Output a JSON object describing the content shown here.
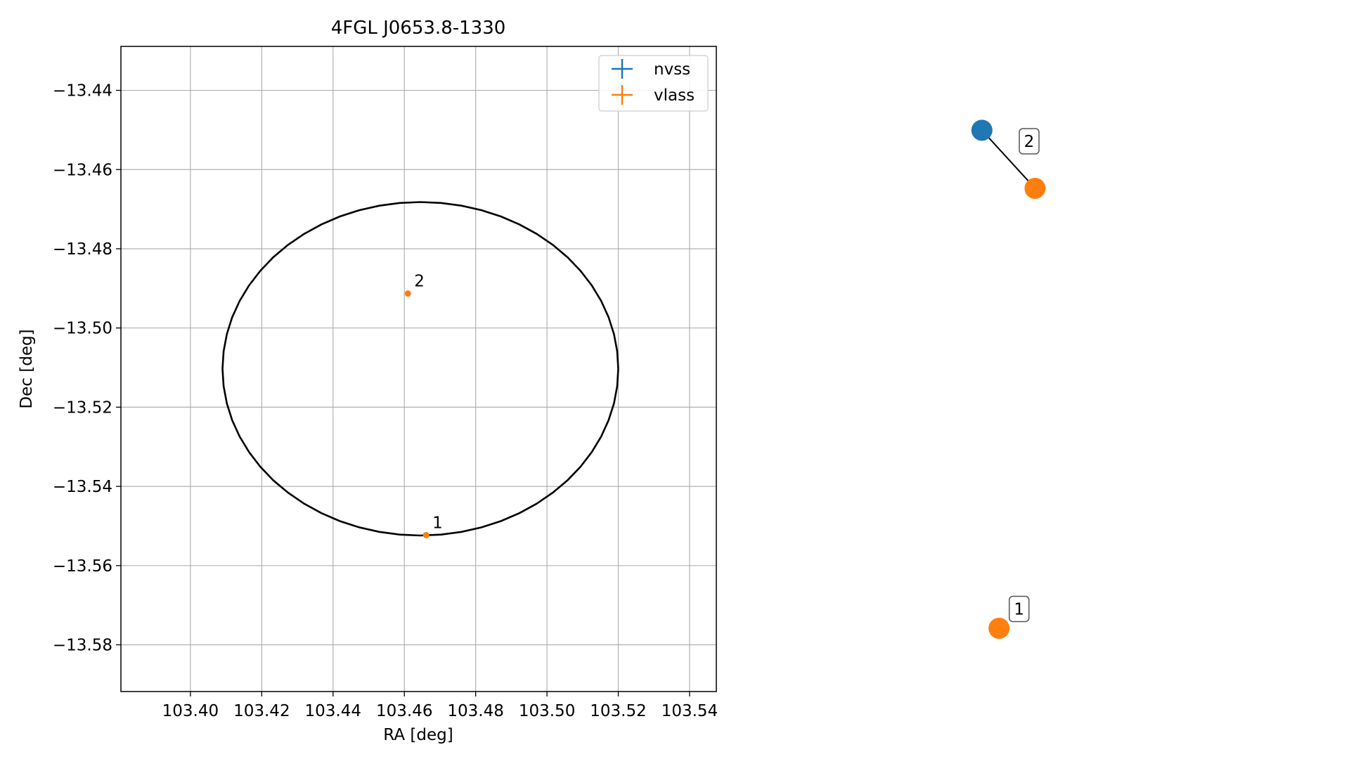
{
  "chart_data": [
    {
      "type": "scatter",
      "title": "4FGL J0653.8-1330",
      "xlabel": "RA [deg]",
      "ylabel": "Dec [deg]",
      "xlim": [
        103.3805,
        103.5475
      ],
      "ylim": [
        -13.5918,
        -13.4289
      ],
      "xticks": [
        103.4,
        103.42,
        103.44,
        103.46,
        103.48,
        103.5,
        103.52,
        103.54
      ],
      "xtick_labels": [
        "103.40",
        "103.42",
        "103.44",
        "103.46",
        "103.48",
        "103.50",
        "103.52",
        "103.54"
      ],
      "yticks": [
        -13.44,
        -13.46,
        -13.48,
        -13.5,
        -13.52,
        -13.54,
        -13.56,
        -13.58
      ],
      "ytick_labels": [
        "−13.44",
        "−13.46",
        "−13.48",
        "−13.50",
        "−13.52",
        "−13.54",
        "−13.56",
        "−13.58"
      ],
      "grid": true,
      "legend_position": "top-right",
      "legend": [
        {
          "label": "nvss",
          "color": "#1f77b4"
        },
        {
          "label": "vlass",
          "color": "#ff7f0e"
        }
      ],
      "ellipse": {
        "center": [
          103.4645,
          -13.5103
        ],
        "semi_axis_ra": 0.0555,
        "semi_axis_dec": 0.0421,
        "color": "#000000"
      },
      "series": [
        {
          "name": "vlass",
          "color": "#ff7f0e",
          "points": [
            {
              "label": "2",
              "x": 103.461,
              "y": -13.4913
            },
            {
              "label": "1",
              "x": 103.4661,
              "y": -13.5523
            }
          ]
        }
      ]
    },
    {
      "type": "scatter",
      "axes_visible": false,
      "xlim": [
        0,
        1
      ],
      "ylim": [
        0,
        1
      ],
      "points": [
        {
          "id": "nvss-2",
          "x": 0.395,
          "y": 0.87,
          "color": "#1f77b4"
        },
        {
          "id": "vlass-2",
          "x": 0.485,
          "y": 0.78,
          "color": "#ff7f0e"
        },
        {
          "id": "vlass-1",
          "x": 0.424,
          "y": 0.098,
          "color": "#ff7f0e"
        }
      ],
      "links": [
        {
          "from": "nvss-2",
          "to": "vlass-2"
        }
      ],
      "labels": [
        {
          "text": "2",
          "x": 0.475,
          "y": 0.853
        },
        {
          "text": "1",
          "x": 0.458,
          "y": 0.128
        }
      ]
    }
  ]
}
